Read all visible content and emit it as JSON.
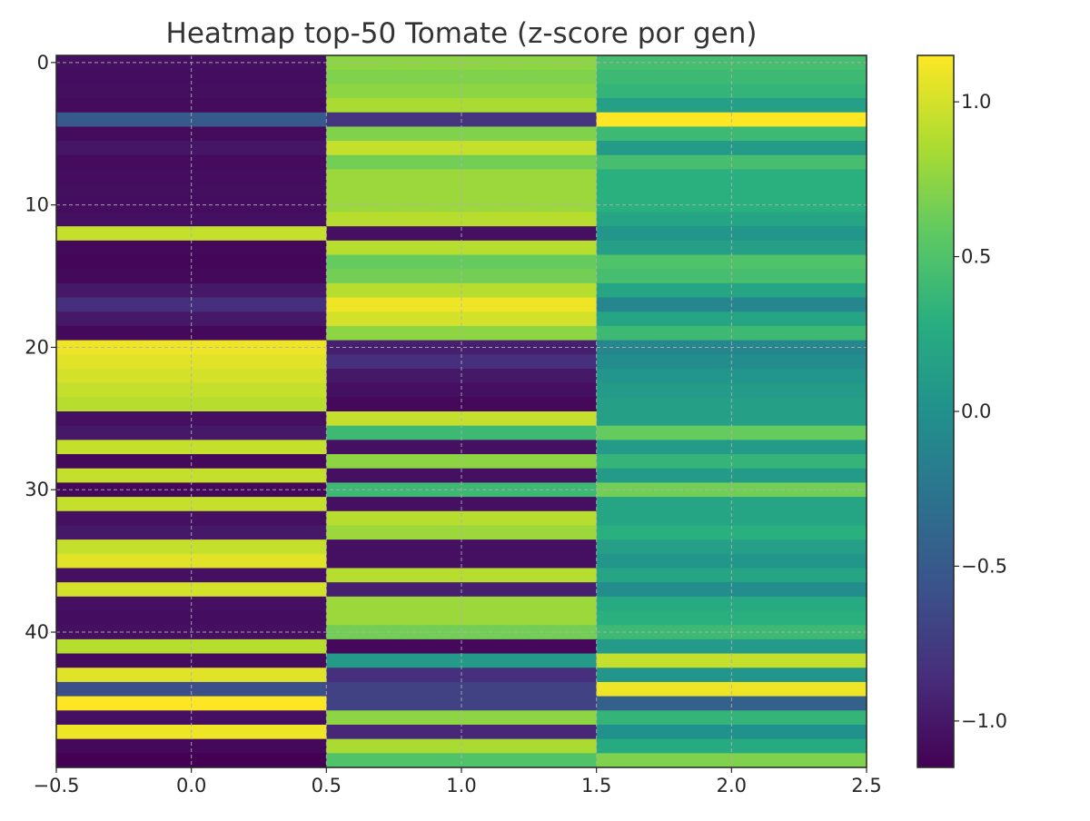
{
  "chart_data": {
    "type": "heatmap",
    "title": "Heatmap top-50 Tomate (z-score por gen)",
    "xlabel": "",
    "ylabel": "",
    "xlim": [
      -0.5,
      2.5
    ],
    "ylim": [
      49.5,
      -0.5
    ],
    "x_ticks": [
      -0.5,
      0.0,
      0.5,
      1.0,
      1.5,
      2.0,
      2.5
    ],
    "x_tick_labels": [
      "−0.5",
      "0.0",
      "0.5",
      "1.0",
      "1.5",
      "2.0",
      "2.5"
    ],
    "y_ticks": [
      0,
      10,
      20,
      30,
      40
    ],
    "y_tick_labels": [
      "0",
      "10",
      "20",
      "30",
      "40"
    ],
    "colorbar": {
      "colormap": "viridis",
      "vmin": -1.15,
      "vmax": 1.15,
      "ticks": [
        1.0,
        0.5,
        0.0,
        -0.5,
        -1.0
      ],
      "tick_labels": [
        "1.0",
        "0.5",
        "0.0",
        "−0.5",
        "−1.0"
      ]
    },
    "grid": true,
    "n_rows": 50,
    "n_cols": 3,
    "values": [
      [
        -1.05,
        0.75,
        0.45
      ],
      [
        -1.07,
        0.7,
        0.4
      ],
      [
        -1.06,
        0.75,
        0.35
      ],
      [
        -1.08,
        0.85,
        0.15
      ],
      [
        -0.5,
        -0.8,
        1.15
      ],
      [
        -1.08,
        0.7,
        0.4
      ],
      [
        -1.02,
        0.95,
        0.1
      ],
      [
        -1.08,
        0.65,
        0.45
      ],
      [
        -1.07,
        0.8,
        0.3
      ],
      [
        -1.06,
        0.8,
        0.3
      ],
      [
        -1.07,
        0.8,
        0.3
      ],
      [
        -1.05,
        0.9,
        0.2
      ],
      [
        0.95,
        -1.05,
        0.05
      ],
      [
        -1.1,
        0.9,
        0.15
      ],
      [
        -1.12,
        0.6,
        0.5
      ],
      [
        -1.1,
        0.65,
        0.45
      ],
      [
        -1.0,
        0.9,
        0.2
      ],
      [
        -0.85,
        1.1,
        -0.1
      ],
      [
        -1.0,
        1.0,
        0.2
      ],
      [
        -1.1,
        0.75,
        0.4
      ],
      [
        1.1,
        -0.95,
        -0.1
      ],
      [
        1.05,
        -0.85,
        -0.05
      ],
      [
        1.0,
        -1.0,
        0.05
      ],
      [
        0.95,
        -1.05,
        0.1
      ],
      [
        0.9,
        -1.1,
        0.15
      ],
      [
        -1.05,
        0.95,
        0.15
      ],
      [
        -1.0,
        0.4,
        0.6
      ],
      [
        0.95,
        -1.05,
        0.1
      ],
      [
        -1.1,
        0.75,
        0.35
      ],
      [
        0.95,
        -1.05,
        0.1
      ],
      [
        -1.1,
        0.4,
        0.65
      ],
      [
        0.95,
        -1.05,
        0.2
      ],
      [
        -1.05,
        0.9,
        0.2
      ],
      [
        -1.0,
        0.8,
        0.3
      ],
      [
        0.95,
        -1.05,
        0.15
      ],
      [
        1.05,
        -1.05,
        0.05
      ],
      [
        -1.05,
        0.9,
        0.2
      ],
      [
        1.0,
        -0.95,
        -0.05
      ],
      [
        -1.05,
        0.8,
        0.25
      ],
      [
        -1.07,
        0.8,
        0.3
      ],
      [
        -1.05,
        0.65,
        0.4
      ],
      [
        0.9,
        -1.1,
        0.1
      ],
      [
        -1.08,
        0.1,
        0.95
      ],
      [
        1.05,
        -0.85,
        0.05
      ],
      [
        -0.6,
        -0.7,
        1.1
      ],
      [
        1.15,
        -0.7,
        -0.45
      ],
      [
        -1.05,
        0.75,
        0.35
      ],
      [
        1.1,
        -0.9,
        0.0
      ],
      [
        -1.1,
        0.85,
        0.25
      ],
      [
        -1.15,
        0.5,
        0.7
      ]
    ]
  }
}
